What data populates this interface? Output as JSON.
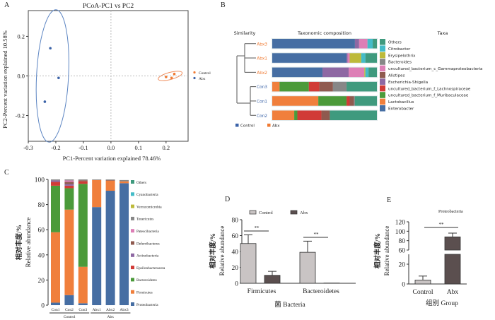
{
  "panels": {
    "A": "A",
    "B": "B",
    "C": "C",
    "D": "D",
    "E": "E"
  },
  "chart_data": [
    {
      "id": "A",
      "type": "scatter",
      "title": "PCoA-PC1 vs PC2",
      "xlabel": "PC1-Percent variation explained 78.46%",
      "ylabel": "PC2-Percent variation explained 10.58%",
      "xlim": [
        -0.3,
        0.28
      ],
      "ylim": [
        -0.33,
        0.33
      ],
      "xticks": [
        -0.3,
        -0.2,
        -0.1,
        0.0,
        0.1,
        0.2
      ],
      "xtick_labels": [
        "-0.3",
        "-0.2",
        "-0.1",
        "0.0",
        "0.1",
        "0.2"
      ],
      "yticks": [
        -0.2,
        0.0,
        0.2
      ],
      "ytick_labels": [
        "-0.2",
        "0.0",
        "0.2"
      ],
      "legend": "right",
      "series": [
        {
          "name": "Control",
          "color": "#f07a32",
          "points": [
            [
              0.2,
              -0.005
            ],
            [
              0.22,
              -0.01
            ],
            [
              0.23,
              0.01
            ]
          ],
          "ellipse": {
            "cx": 0.215,
            "cy": 0.0,
            "rx": 0.045,
            "ry": 0.018,
            "angle": -15
          }
        },
        {
          "name": "Abx",
          "color": "#3b63a8",
          "points": [
            [
              -0.22,
              0.14
            ],
            [
              -0.19,
              -0.01
            ],
            [
              -0.24,
              -0.13
            ]
          ],
          "ellipse": {
            "cx": -0.212,
            "cy": 0.0,
            "rx": 0.058,
            "ry": 0.335,
            "angle": 3
          }
        }
      ]
    },
    {
      "id": "B",
      "type": "bar",
      "orientation": "horizontal-stacked",
      "headers": {
        "similarity": "Similarity",
        "composition": "Taxonomic composition",
        "taxa": "Taxa"
      },
      "samples": [
        "Abx3",
        "Abx1",
        "Abx2",
        "Con3",
        "Con1",
        "Con2"
      ],
      "sample_groups": [
        "Abx",
        "Abx",
        "Abx",
        "Control",
        "Control",
        "Control"
      ],
      "group_legend": [
        {
          "name": "Control",
          "color": "#3b63a8"
        },
        {
          "name": "Abx",
          "color": "#f07a32"
        }
      ],
      "taxa": [
        {
          "name": "Enterobacter",
          "color": "#466ea3"
        },
        {
          "name": "Lactobacillus",
          "color": "#f07f3c"
        },
        {
          "name": "uncultured_bacterium_f_Muribaculaceae",
          "color": "#4b9a3a"
        },
        {
          "name": "uncultured_bacterium_f_Lachnospiraceae",
          "color": "#d13b37"
        },
        {
          "name": "Escherichia-Shigella",
          "color": "#8e68a3"
        },
        {
          "name": "Alistipes",
          "color": "#8f5a4f"
        },
        {
          "name": "uncultured_bacterium_c_Gammaproteobacteria",
          "color": "#dd7fb6"
        },
        {
          "name": "Bacteroides",
          "color": "#878787"
        },
        {
          "name": "Erysipelothrix",
          "color": "#bdba3a"
        },
        {
          "name": "Citrobacter",
          "color": "#44bcc8"
        },
        {
          "name": "Others",
          "color": "#3f9a7e"
        }
      ],
      "values_percent": {
        "Abx3": [
          79,
          0,
          0,
          0,
          4,
          0,
          8,
          0,
          0,
          5,
          4
        ],
        "Abx1": [
          71,
          0,
          0,
          0,
          1,
          0,
          2,
          0,
          11,
          4,
          11
        ],
        "Abx2": [
          48,
          0,
          0,
          0,
          25,
          0,
          15,
          0,
          1,
          3,
          8
        ],
        "Con3": [
          0,
          7,
          28,
          10,
          0,
          13,
          0,
          13,
          0,
          0,
          29
        ],
        "Con1": [
          0,
          44,
          27,
          3,
          0,
          4,
          0,
          1,
          0,
          0,
          21
        ],
        "Con2": [
          0,
          21,
          3,
          23,
          0,
          8,
          0,
          0,
          0,
          0,
          45
        ]
      }
    },
    {
      "id": "C",
      "type": "bar",
      "orientation": "vertical-stacked",
      "ylabel_cn": "相对丰度/%",
      "ylabel": "Relative abundance",
      "ylim": [
        0,
        100
      ],
      "yticks": [
        0,
        20,
        40,
        60,
        80,
        100
      ],
      "categories": [
        "Con1",
        "Con2",
        "Con3",
        "Abx1",
        "Abx2",
        "Abx3"
      ],
      "groups": [
        {
          "name": "Control",
          "members": [
            "Con1",
            "Con2",
            "Con3"
          ]
        },
        {
          "name": "Abx",
          "members": [
            "Abx1",
            "Abx2",
            "Abx3"
          ]
        }
      ],
      "legend": "right",
      "series": [
        {
          "name": "Proteobacteria",
          "color": "#466ea3",
          "values": [
            2,
            8,
            1.5,
            78,
            91,
            97
          ]
        },
        {
          "name": "Firmicutes",
          "color": "#f07f3c",
          "values": [
            56,
            68,
            29,
            21.5,
            8,
            1.5
          ]
        },
        {
          "name": "Bacteroidetes",
          "color": "#4b9a3a",
          "values": [
            37,
            17,
            66,
            0,
            0,
            0
          ]
        },
        {
          "name": "Epsilonbacteraeota",
          "color": "#d13b37",
          "values": [
            3,
            2,
            2,
            0,
            0,
            0
          ]
        },
        {
          "name": "Actinobacteria",
          "color": "#8e68a3",
          "values": [
            1.2,
            1.3,
            0,
            0,
            0,
            0
          ]
        },
        {
          "name": "Deferribacteres",
          "color": "#8f5a4f",
          "values": [
            0,
            1.7,
            0.8,
            0,
            0.5,
            0
          ]
        },
        {
          "name": "Patescibacteria",
          "color": "#dd7fb6",
          "values": [
            0,
            1.2,
            0,
            0,
            0,
            0
          ]
        },
        {
          "name": "Tenericutes",
          "color": "#878787",
          "values": [
            0.8,
            0.8,
            0.7,
            0.5,
            0.5,
            1
          ]
        },
        {
          "name": "Verrucomicrobia",
          "color": "#bdba3a",
          "values": [
            0,
            0,
            0,
            0,
            0,
            0
          ]
        },
        {
          "name": "Cyanobacteria",
          "color": "#44bcc8",
          "values": [
            0,
            0,
            0,
            0,
            0,
            0
          ]
        },
        {
          "name": "Others",
          "color": "#3f9a7e",
          "values": [
            0,
            0,
            0,
            0,
            0,
            0
          ]
        }
      ]
    },
    {
      "id": "D",
      "type": "bar",
      "ylabel_cn": "相对丰度/%",
      "ylabel": "Relative abundance",
      "xlabel_cn": "菌",
      "xlabel": "Bacteria",
      "ylim": [
        0,
        80
      ],
      "yticks": [
        0,
        20,
        40,
        60,
        80
      ],
      "categories": [
        "Firmicutes",
        "Bacteroidetes"
      ],
      "legend": "top",
      "series": [
        {
          "name": "Control",
          "color": "#c9c4c4",
          "values": [
            50,
            39
          ],
          "errors": [
            11,
            14
          ]
        },
        {
          "name": "Abx",
          "color": "#5b4f4f",
          "values": [
            10,
            0.3
          ],
          "errors": [
            5,
            0
          ]
        }
      ],
      "annotations": [
        "**",
        "**"
      ]
    },
    {
      "id": "E",
      "type": "bar",
      "title": "Proteobacteria",
      "ylabel_cn": "相对丰度/%",
      "ylabel": "Relative abundance",
      "xlabel_cn": "组别",
      "xlabel": "Group",
      "ylim": [
        0,
        120
      ],
      "axis_break": [
        30,
        60
      ],
      "yticks": [
        0,
        20,
        60,
        80,
        100,
        120
      ],
      "categories": [
        "Control",
        "Abx"
      ],
      "series": [
        {
          "name": "Group",
          "colors": [
            "#c9c4c4",
            "#5b4f4f"
          ],
          "values": [
            4,
            88
          ],
          "errors": [
            4,
            8
          ]
        }
      ],
      "annotations": [
        "**"
      ]
    }
  ]
}
